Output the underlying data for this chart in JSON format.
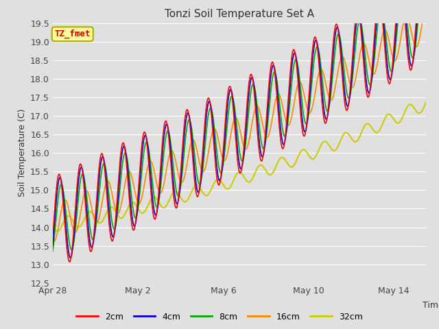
{
  "title": "Tonzi Soil Temperature Set A",
  "ylabel": "Soil Temperature (C)",
  "xlabel": "Time",
  "annotation": "TZ_fmet",
  "ylim": [
    12.5,
    19.5
  ],
  "xlim": [
    0,
    17.5
  ],
  "xtick_positions": [
    0,
    4,
    8,
    12,
    16
  ],
  "xtick_labels": [
    "Apr 28",
    "May 2",
    "May 6",
    "May 10",
    "May 14"
  ],
  "ytick_positions": [
    12.5,
    13.0,
    13.5,
    14.0,
    14.5,
    15.0,
    15.5,
    16.0,
    16.5,
    17.0,
    17.5,
    18.0,
    18.5,
    19.0,
    19.5
  ],
  "colors": {
    "2cm": "#ff0000",
    "4cm": "#0000cc",
    "8cm": "#00aa00",
    "16cm": "#ff8800",
    "32cm": "#cccc00"
  },
  "background_color": "#e0e0e0",
  "grid_color": "#ffffff",
  "annotation_bg": "#ffff99",
  "annotation_border": "#aaaa00",
  "annotation_text_color": "#cc0000"
}
